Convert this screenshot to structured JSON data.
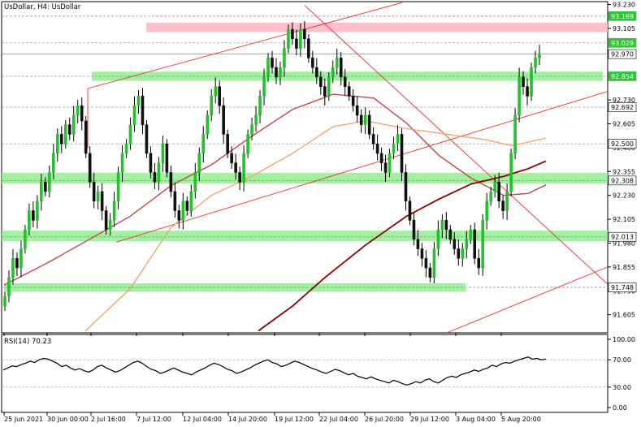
{
  "chart_data": {
    "type": "candlestick",
    "symbol": "UsDollar",
    "timeframe": "H4",
    "header": "UsDollar, H4:  UsDollar",
    "y_ticks": [
      "93.230",
      "93.105",
      "92.980",
      "92.855",
      "92.730",
      "92.605",
      "92.480",
      "92.355",
      "92.230",
      "92.105",
      "91.980",
      "91.855",
      "91.730",
      "91.605"
    ],
    "x_ticks": [
      "25 Jun 2021",
      "30 Jun 00:00",
      "2 Jul 16:00",
      "7 Jul 12:00",
      "12 Jul 04:00",
      "14 Jul 20:00",
      "19 Jul 12:00",
      "22 Jul 04:00",
      "26 Jul 20:00",
      "29 Jul 12:00",
      "3 Aug 04:00",
      "5 Aug 20:00"
    ],
    "ylim": [
      91.51,
      93.245
    ],
    "price_labels": [
      {
        "text": "93.169",
        "value": 93.169,
        "style": "green"
      },
      {
        "text": "93.029",
        "value": 93.029,
        "style": "green"
      },
      {
        "text": "92.970",
        "value": 92.97,
        "style": "white"
      },
      {
        "text": "92.854",
        "value": 92.854,
        "style": "green"
      },
      {
        "text": "92.692",
        "value": 92.692,
        "style": "white"
      },
      {
        "text": "92.500",
        "value": 92.5,
        "style": "white"
      },
      {
        "text": "92.308",
        "value": 92.308,
        "style": "white"
      },
      {
        "text": "92.013",
        "value": 92.013,
        "style": "white"
      },
      {
        "text": "91.748",
        "value": 91.748,
        "style": "white"
      }
    ],
    "zones": [
      {
        "kind": "resistance",
        "low": 93.085,
        "high": 93.135
      },
      {
        "kind": "support",
        "low": 92.83,
        "high": 92.878
      },
      {
        "kind": "support",
        "low": 92.292,
        "high": 92.348
      },
      {
        "kind": "support",
        "low": 91.99,
        "high": 92.045
      },
      {
        "kind": "support",
        "low": 91.725,
        "high": 91.77
      }
    ],
    "close_series": [
      91.7,
      91.8,
      91.9,
      91.85,
      91.95,
      92.05,
      92.15,
      92.1,
      92.2,
      92.3,
      92.25,
      92.35,
      92.45,
      92.55,
      92.5,
      92.6,
      92.55,
      92.65,
      92.7,
      92.62,
      92.45,
      92.3,
      92.2,
      92.25,
      92.15,
      92.05,
      92.1,
      92.2,
      92.35,
      92.45,
      92.5,
      92.6,
      92.7,
      92.75,
      92.6,
      92.45,
      92.35,
      92.3,
      92.4,
      92.5,
      92.35,
      92.25,
      92.15,
      92.1,
      92.2,
      92.15,
      92.25,
      92.35,
      92.45,
      92.55,
      92.65,
      92.75,
      92.8,
      92.7,
      92.55,
      92.45,
      92.4,
      92.35,
      92.3,
      92.45,
      92.55,
      92.6,
      92.65,
      92.75,
      92.85,
      92.95,
      92.9,
      92.85,
      92.9,
      93.0,
      93.1,
      93.05,
      93.0,
      93.1,
      93.05,
      92.95,
      92.9,
      92.85,
      92.8,
      92.75,
      92.85,
      92.9,
      92.95,
      92.85,
      92.8,
      92.75,
      92.7,
      92.65,
      92.6,
      92.65,
      92.55,
      92.5,
      92.45,
      92.4,
      92.35,
      92.45,
      92.5,
      92.55,
      92.35,
      92.2,
      92.1,
      92.0,
      91.95,
      91.9,
      91.85,
      91.8,
      91.95,
      92.05,
      92.1,
      92.05,
      92.0,
      91.95,
      91.9,
      91.95,
      92.0,
      92.05,
      91.9,
      91.85,
      92.1,
      92.2,
      92.25,
      92.3,
      92.2,
      92.15,
      92.25,
      92.45,
      92.65,
      92.85,
      92.8,
      92.75,
      92.9,
      92.95,
      92.97
    ],
    "rsi": {
      "label": "RSI(14) 70.23",
      "value": 70.23,
      "ticks": [
        "100.00",
        "70.00",
        "30.00",
        "0.00"
      ],
      "levels": [
        70,
        30
      ],
      "series": [
        55,
        58,
        61,
        60,
        63,
        65,
        68,
        66,
        70,
        72,
        71,
        68,
        65,
        60,
        62,
        58,
        55,
        57,
        54,
        52,
        55,
        60,
        62,
        58,
        55,
        52,
        54,
        58,
        62,
        66,
        68,
        65,
        60,
        56,
        54,
        50,
        52,
        55,
        58,
        55,
        52,
        50,
        48,
        52,
        55,
        58,
        62,
        65,
        63,
        60,
        56,
        54,
        50,
        52,
        55,
        58,
        62,
        65,
        68,
        70,
        66,
        64,
        60,
        62,
        65,
        68,
        66,
        63,
        60,
        57,
        55,
        52,
        50,
        53,
        56,
        54,
        51,
        48,
        50,
        46,
        44,
        42,
        45,
        42,
        40,
        38,
        36,
        40,
        38,
        35,
        33,
        35,
        38,
        36,
        40,
        42,
        38,
        36,
        40,
        44,
        46,
        44,
        48,
        50,
        52,
        55,
        53,
        56,
        58,
        62,
        60,
        64,
        66,
        65,
        68,
        70,
        72,
        74,
        71,
        72,
        70,
        71
      ]
    },
    "annotations": "price channel, descending trendline, moving averages and horizontal support/resistance zones"
  }
}
